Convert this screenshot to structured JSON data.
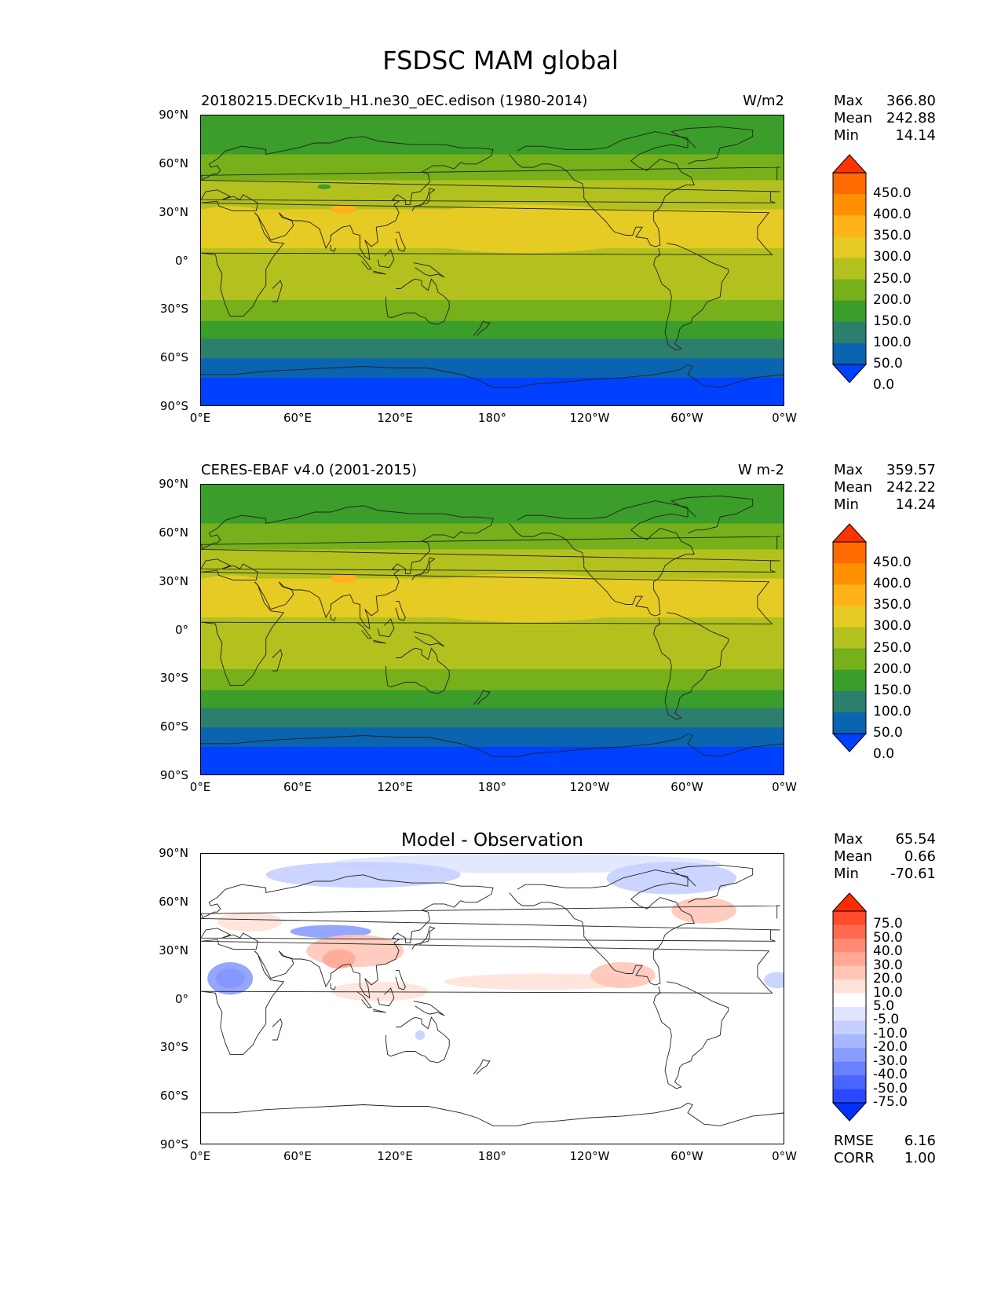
{
  "title": "FSDSC MAM global",
  "lat_ticks": [
    "90°N",
    "60°N",
    "30°N",
    "0°",
    "30°S",
    "60°S",
    "90°S"
  ],
  "lon_ticks": [
    "0°E",
    "60°E",
    "120°E",
    "180°",
    "120°W",
    "60°W",
    "0°W"
  ],
  "panels": [
    {
      "left_title": "20180215.DECKv1b_H1.ne30_oEC.edison (1980-2014)",
      "center_title": "",
      "right_title": "W/m2",
      "stats": {
        "max_label": "Max",
        "max": "366.80",
        "mean_label": "Mean",
        "mean": "242.88",
        "min_label": "Min",
        "min": "14.14"
      },
      "colorbar_labels": [
        "450.0",
        "400.0",
        "350.0",
        "300.0",
        "250.0",
        "200.0",
        "150.0",
        "100.0",
        "50.0",
        "0.0"
      ],
      "colorbar_colors": [
        "#ff3300",
        "#ff6a00",
        "#ff9100",
        "#ffb21a",
        "#e5cb24",
        "#b2c11e",
        "#76b01a",
        "#3b9d2a",
        "#2c7f6d",
        "#0a64b0",
        "#0040ff"
      ],
      "field": "model"
    },
    {
      "left_title": "CERES-EBAF v4.0 (2001-2015)",
      "center_title": "",
      "right_title": "W m-2",
      "stats": {
        "max_label": "Max",
        "max": "359.57",
        "mean_label": "Mean",
        "mean": "242.22",
        "min_label": "Min",
        "min": "14.24"
      },
      "colorbar_labels": [
        "450.0",
        "400.0",
        "350.0",
        "300.0",
        "250.0",
        "200.0",
        "150.0",
        "100.0",
        "50.0",
        "0.0"
      ],
      "colorbar_colors": [
        "#ff3300",
        "#ff6a00",
        "#ff9100",
        "#ffb21a",
        "#e5cb24",
        "#b2c11e",
        "#76b01a",
        "#3b9d2a",
        "#2c7f6d",
        "#0a64b0",
        "#0040ff"
      ],
      "field": "obs"
    },
    {
      "left_title": "",
      "center_title": "Model - Observation",
      "right_title": "",
      "stats": {
        "max_label": "Max",
        "max": "65.54",
        "mean_label": "Mean",
        "mean": "0.66",
        "min_label": "Min",
        "min": "-70.61"
      },
      "colorbar_labels": [
        "75.0",
        "50.0",
        "40.0",
        "30.0",
        "20.0",
        "10.0",
        "5.0",
        "-5.0",
        "-10.0",
        "-20.0",
        "-30.0",
        "-40.0",
        "-50.0",
        "-75.0"
      ],
      "colorbar_colors": [
        "#ff2a00",
        "#ff4a2c",
        "#ff6a50",
        "#ff8a74",
        "#ffa896",
        "#ffc6b8",
        "#ffe2d8",
        "#ffffff",
        "#e0e6ff",
        "#c6d0ff",
        "#a8b6ff",
        "#8a9cff",
        "#6a80ff",
        "#4a64ff",
        "#2a48ff",
        "#0030ff"
      ],
      "field": "diff",
      "bottom": {
        "rmse_label": "RMSE",
        "rmse": "6.16",
        "corr_label": "CORR",
        "corr": "1.00"
      }
    }
  ]
}
